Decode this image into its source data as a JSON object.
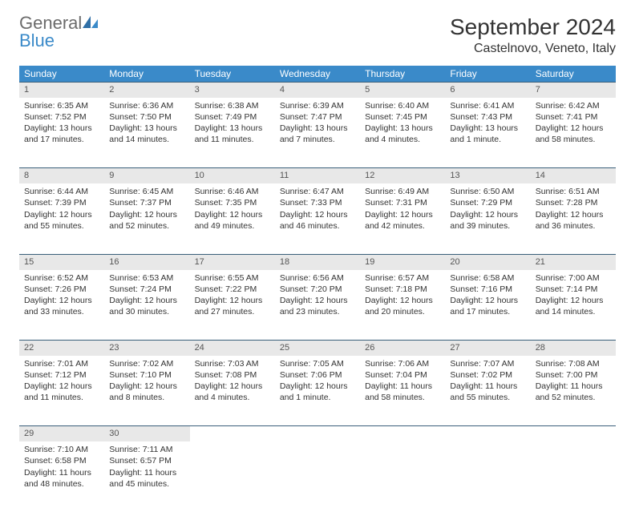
{
  "brand": {
    "name1": "General",
    "name2": "Blue"
  },
  "title": "September 2024",
  "location": "Castelnovo, Veneto, Italy",
  "colors": {
    "header_bg": "#3a8ac9",
    "header_text": "#ffffff",
    "daynum_bg": "#e8e8e8",
    "row_divider": "#3a5f7a",
    "text": "#333333",
    "logo_gray": "#6b6b6b",
    "logo_blue": "#3a8ac9"
  },
  "weekdays": [
    "Sunday",
    "Monday",
    "Tuesday",
    "Wednesday",
    "Thursday",
    "Friday",
    "Saturday"
  ],
  "weeks": [
    [
      {
        "day": "1",
        "sunrise": "Sunrise: 6:35 AM",
        "sunset": "Sunset: 7:52 PM",
        "daylight1": "Daylight: 13 hours",
        "daylight2": "and 17 minutes."
      },
      {
        "day": "2",
        "sunrise": "Sunrise: 6:36 AM",
        "sunset": "Sunset: 7:50 PM",
        "daylight1": "Daylight: 13 hours",
        "daylight2": "and 14 minutes."
      },
      {
        "day": "3",
        "sunrise": "Sunrise: 6:38 AM",
        "sunset": "Sunset: 7:49 PM",
        "daylight1": "Daylight: 13 hours",
        "daylight2": "and 11 minutes."
      },
      {
        "day": "4",
        "sunrise": "Sunrise: 6:39 AM",
        "sunset": "Sunset: 7:47 PM",
        "daylight1": "Daylight: 13 hours",
        "daylight2": "and 7 minutes."
      },
      {
        "day": "5",
        "sunrise": "Sunrise: 6:40 AM",
        "sunset": "Sunset: 7:45 PM",
        "daylight1": "Daylight: 13 hours",
        "daylight2": "and 4 minutes."
      },
      {
        "day": "6",
        "sunrise": "Sunrise: 6:41 AM",
        "sunset": "Sunset: 7:43 PM",
        "daylight1": "Daylight: 13 hours",
        "daylight2": "and 1 minute."
      },
      {
        "day": "7",
        "sunrise": "Sunrise: 6:42 AM",
        "sunset": "Sunset: 7:41 PM",
        "daylight1": "Daylight: 12 hours",
        "daylight2": "and 58 minutes."
      }
    ],
    [
      {
        "day": "8",
        "sunrise": "Sunrise: 6:44 AM",
        "sunset": "Sunset: 7:39 PM",
        "daylight1": "Daylight: 12 hours",
        "daylight2": "and 55 minutes."
      },
      {
        "day": "9",
        "sunrise": "Sunrise: 6:45 AM",
        "sunset": "Sunset: 7:37 PM",
        "daylight1": "Daylight: 12 hours",
        "daylight2": "and 52 minutes."
      },
      {
        "day": "10",
        "sunrise": "Sunrise: 6:46 AM",
        "sunset": "Sunset: 7:35 PM",
        "daylight1": "Daylight: 12 hours",
        "daylight2": "and 49 minutes."
      },
      {
        "day": "11",
        "sunrise": "Sunrise: 6:47 AM",
        "sunset": "Sunset: 7:33 PM",
        "daylight1": "Daylight: 12 hours",
        "daylight2": "and 46 minutes."
      },
      {
        "day": "12",
        "sunrise": "Sunrise: 6:49 AM",
        "sunset": "Sunset: 7:31 PM",
        "daylight1": "Daylight: 12 hours",
        "daylight2": "and 42 minutes."
      },
      {
        "day": "13",
        "sunrise": "Sunrise: 6:50 AM",
        "sunset": "Sunset: 7:29 PM",
        "daylight1": "Daylight: 12 hours",
        "daylight2": "and 39 minutes."
      },
      {
        "day": "14",
        "sunrise": "Sunrise: 6:51 AM",
        "sunset": "Sunset: 7:28 PM",
        "daylight1": "Daylight: 12 hours",
        "daylight2": "and 36 minutes."
      }
    ],
    [
      {
        "day": "15",
        "sunrise": "Sunrise: 6:52 AM",
        "sunset": "Sunset: 7:26 PM",
        "daylight1": "Daylight: 12 hours",
        "daylight2": "and 33 minutes."
      },
      {
        "day": "16",
        "sunrise": "Sunrise: 6:53 AM",
        "sunset": "Sunset: 7:24 PM",
        "daylight1": "Daylight: 12 hours",
        "daylight2": "and 30 minutes."
      },
      {
        "day": "17",
        "sunrise": "Sunrise: 6:55 AM",
        "sunset": "Sunset: 7:22 PM",
        "daylight1": "Daylight: 12 hours",
        "daylight2": "and 27 minutes."
      },
      {
        "day": "18",
        "sunrise": "Sunrise: 6:56 AM",
        "sunset": "Sunset: 7:20 PM",
        "daylight1": "Daylight: 12 hours",
        "daylight2": "and 23 minutes."
      },
      {
        "day": "19",
        "sunrise": "Sunrise: 6:57 AM",
        "sunset": "Sunset: 7:18 PM",
        "daylight1": "Daylight: 12 hours",
        "daylight2": "and 20 minutes."
      },
      {
        "day": "20",
        "sunrise": "Sunrise: 6:58 AM",
        "sunset": "Sunset: 7:16 PM",
        "daylight1": "Daylight: 12 hours",
        "daylight2": "and 17 minutes."
      },
      {
        "day": "21",
        "sunrise": "Sunrise: 7:00 AM",
        "sunset": "Sunset: 7:14 PM",
        "daylight1": "Daylight: 12 hours",
        "daylight2": "and 14 minutes."
      }
    ],
    [
      {
        "day": "22",
        "sunrise": "Sunrise: 7:01 AM",
        "sunset": "Sunset: 7:12 PM",
        "daylight1": "Daylight: 12 hours",
        "daylight2": "and 11 minutes."
      },
      {
        "day": "23",
        "sunrise": "Sunrise: 7:02 AM",
        "sunset": "Sunset: 7:10 PM",
        "daylight1": "Daylight: 12 hours",
        "daylight2": "and 8 minutes."
      },
      {
        "day": "24",
        "sunrise": "Sunrise: 7:03 AM",
        "sunset": "Sunset: 7:08 PM",
        "daylight1": "Daylight: 12 hours",
        "daylight2": "and 4 minutes."
      },
      {
        "day": "25",
        "sunrise": "Sunrise: 7:05 AM",
        "sunset": "Sunset: 7:06 PM",
        "daylight1": "Daylight: 12 hours",
        "daylight2": "and 1 minute."
      },
      {
        "day": "26",
        "sunrise": "Sunrise: 7:06 AM",
        "sunset": "Sunset: 7:04 PM",
        "daylight1": "Daylight: 11 hours",
        "daylight2": "and 58 minutes."
      },
      {
        "day": "27",
        "sunrise": "Sunrise: 7:07 AM",
        "sunset": "Sunset: 7:02 PM",
        "daylight1": "Daylight: 11 hours",
        "daylight2": "and 55 minutes."
      },
      {
        "day": "28",
        "sunrise": "Sunrise: 7:08 AM",
        "sunset": "Sunset: 7:00 PM",
        "daylight1": "Daylight: 11 hours",
        "daylight2": "and 52 minutes."
      }
    ],
    [
      {
        "day": "29",
        "sunrise": "Sunrise: 7:10 AM",
        "sunset": "Sunset: 6:58 PM",
        "daylight1": "Daylight: 11 hours",
        "daylight2": "and 48 minutes."
      },
      {
        "day": "30",
        "sunrise": "Sunrise: 7:11 AM",
        "sunset": "Sunset: 6:57 PM",
        "daylight1": "Daylight: 11 hours",
        "daylight2": "and 45 minutes."
      },
      null,
      null,
      null,
      null,
      null
    ]
  ]
}
